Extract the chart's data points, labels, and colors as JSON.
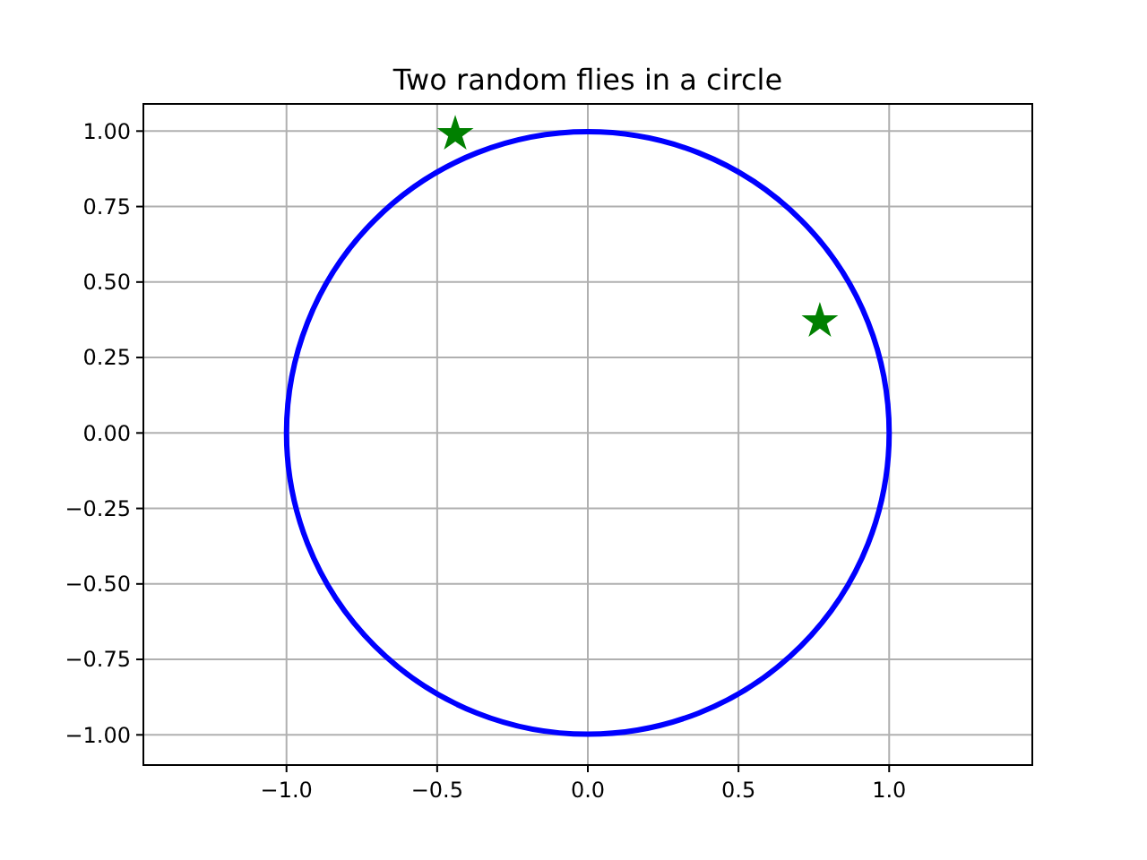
{
  "chart_data": {
    "type": "scatter",
    "title": "Two random flies in a circle",
    "xlim": [
      -1.475,
      1.475
    ],
    "ylim": [
      -1.1,
      1.09
    ],
    "xticks": [
      {
        "value": -1,
        "label": "−1.0"
      },
      {
        "value": -0.5,
        "label": "−0.5"
      },
      {
        "value": 0,
        "label": "0.0"
      },
      {
        "value": 0.5,
        "label": "0.5"
      },
      {
        "value": 1,
        "label": "1.0"
      }
    ],
    "yticks": [
      {
        "value": -1,
        "label": "−1.00"
      },
      {
        "value": -0.75,
        "label": "−0.75"
      },
      {
        "value": -0.5,
        "label": "−0.50"
      },
      {
        "value": -0.25,
        "label": "−0.25"
      },
      {
        "value": 0,
        "label": "0.00"
      },
      {
        "value": 0.25,
        "label": "0.25"
      },
      {
        "value": 0.5,
        "label": "0.50"
      },
      {
        "value": 0.75,
        "label": "0.75"
      },
      {
        "value": 1,
        "label": "1.00"
      }
    ],
    "grid": true,
    "series": [
      {
        "color": "#008000",
        "marker": "star",
        "x": [
          -0.44,
          0.77
        ],
        "values": [
          0.99,
          0.37
        ]
      }
    ]
  }
}
